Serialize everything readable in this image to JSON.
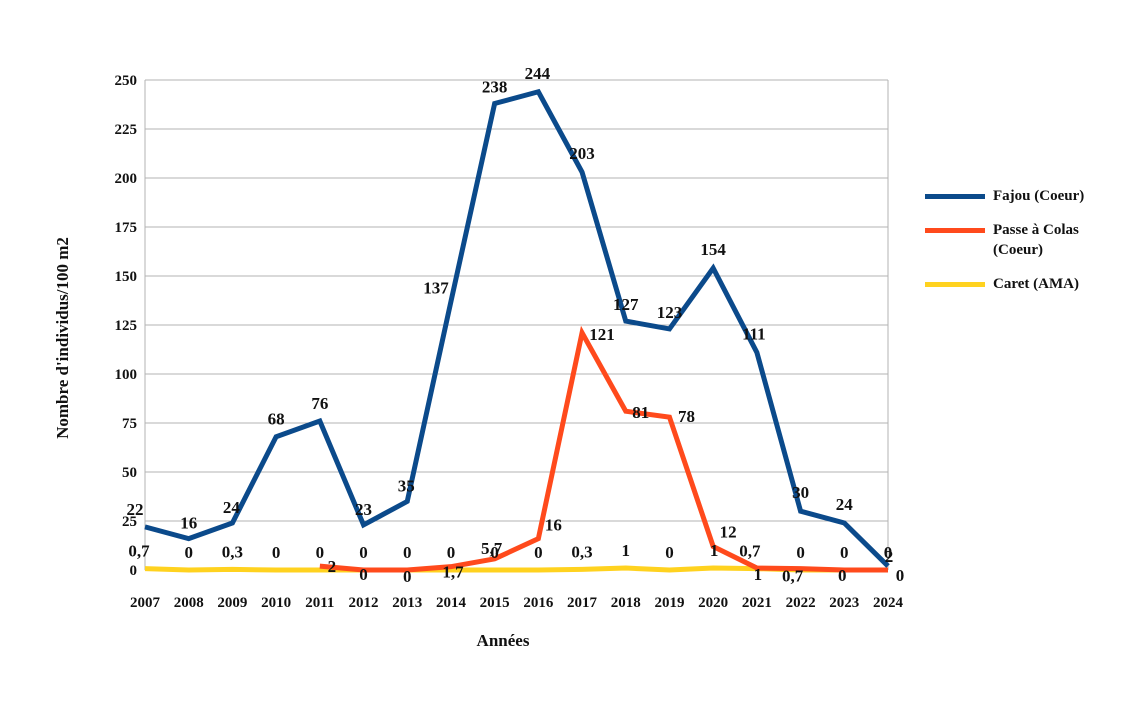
{
  "chart_data": {
    "type": "line",
    "title": "",
    "xlabel": "Années",
    "ylabel": "Nombre d'individus/100 m2",
    "ylim": [
      0,
      250
    ],
    "yticks": [
      "0",
      "25",
      "50",
      "75",
      "100",
      "125",
      "150",
      "175",
      "200",
      "225",
      "250"
    ],
    "grid": true,
    "legend_position": "right",
    "categories": [
      "2007",
      "2008",
      "2009",
      "2010",
      "2011",
      "2012",
      "2013",
      "2014",
      "2015",
      "2016",
      "2017",
      "2018",
      "2019",
      "2020",
      "2021",
      "2022",
      "2023",
      "2024"
    ],
    "series": [
      {
        "name": "Fajou (Coeur)",
        "color": "#0b4a8b",
        "values": [
          22,
          16,
          24,
          68,
          76,
          23,
          35,
          137,
          238,
          244,
          203,
          127,
          123,
          154,
          111,
          30,
          24,
          2
        ],
        "labels": [
          "22",
          "16",
          "24",
          "68",
          "76",
          "23",
          "35",
          "137",
          "238",
          "244",
          "203",
          "127",
          "123",
          "154",
          "111",
          "30",
          "24",
          "2"
        ]
      },
      {
        "name": "Passe à Colas (Coeur)",
        "color": "#ff4a1c",
        "values": [
          null,
          null,
          null,
          null,
          2,
          0,
          0,
          1.7,
          5.7,
          16,
          121,
          81,
          78,
          12,
          1,
          0.7,
          0,
          0
        ],
        "labels": [
          null,
          null,
          null,
          null,
          "2",
          "0",
          "0",
          "1,7",
          "5,7",
          "16",
          "121",
          "81",
          "78",
          "12",
          "1",
          "0,7",
          "0",
          "0"
        ]
      },
      {
        "name": "Caret (AMA)",
        "color": "#ffd21f",
        "values": [
          0.7,
          0,
          0.3,
          0,
          0,
          0,
          0,
          0,
          0,
          0,
          0.3,
          1,
          0,
          1,
          0.7,
          0,
          0,
          0
        ],
        "labels": [
          "0,7",
          "0",
          "0,3",
          "0",
          "0",
          "0",
          "0",
          "0",
          "0",
          "0",
          "0,3",
          "1",
          "0",
          "1",
          "0,7",
          "0",
          "0",
          "0"
        ]
      }
    ]
  }
}
